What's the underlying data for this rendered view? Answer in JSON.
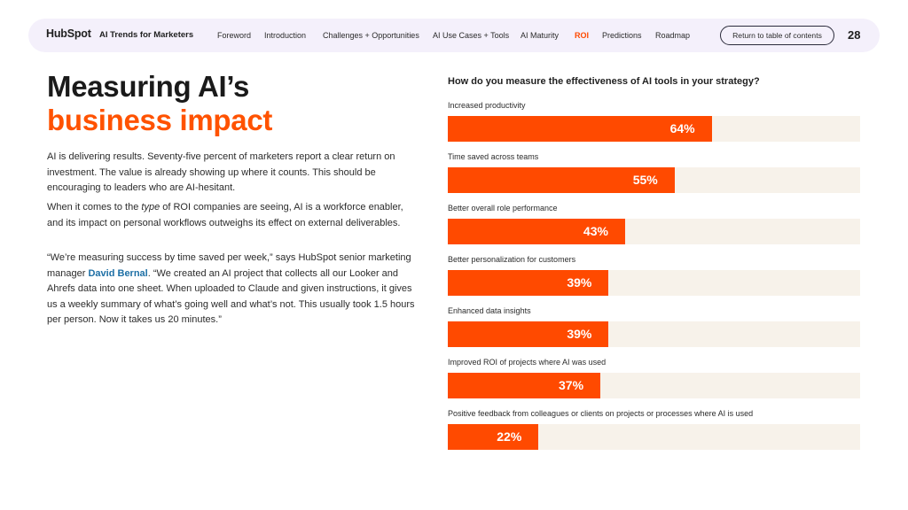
{
  "nav": {
    "logo_text": "HubSpot",
    "report_title": "AI Trends for Marketers",
    "links": [
      "Foreword",
      "Introduction",
      "Challenges + Opportunities",
      "AI Use Cases + Tools",
      "AI Maturity",
      "ROI",
      "Predictions",
      "Roadmap"
    ],
    "active_link": "ROI",
    "toc_button": "Return to table of contents",
    "page_number": "28"
  },
  "headline": {
    "line1": "Measuring AI’s",
    "line2": "business impact"
  },
  "body": {
    "p1": "AI is delivering results. Seventy-five percent of marketers report a clear return on investment. The value is already showing up where it counts. This should be encouraging to leaders who are AI-hesitant.",
    "p2_before": "When it comes to the ",
    "p2_emphasis": "type",
    "p2_after": " of ROI companies are seeing, AI is a workforce enabler, and its impact on personal workflows outweighs its effect on external deliverables.",
    "p3_before": "“We’re measuring success by time saved per week,” says HubSpot senior marketing manager ",
    "p3_person": "David Bernal",
    "p3_after": ". “We created an AI project that collects all our Looker and Ahrefs data into one sheet. When uploaded to Claude and given instructions, it gives us a weekly summary of what’s going well and what’s not. This usually took 1.5 hours per person. Now it takes us 20 minutes.”"
  },
  "chart_data": {
    "type": "bar",
    "title": "How do you measure the effectiveness of AI tools in your strategy?",
    "categories": [
      "Increased productivity",
      "Time saved across teams",
      "Better overall role performance",
      "Better personalization for customers",
      "Enhanced data insights",
      "Improved ROI of projects where AI was used",
      "Positive feedback from colleagues or clients on projects or processes where AI is used"
    ],
    "values": [
      64,
      55,
      43,
      39,
      39,
      37,
      22
    ],
    "value_labels": [
      "64%",
      "55%",
      "43%",
      "39%",
      "39%",
      "37%",
      "22%"
    ],
    "xlim": [
      0,
      100
    ],
    "orientation": "horizontal",
    "colors": {
      "bar": "#ff4a00",
      "track": "#f7f2ea"
    }
  }
}
